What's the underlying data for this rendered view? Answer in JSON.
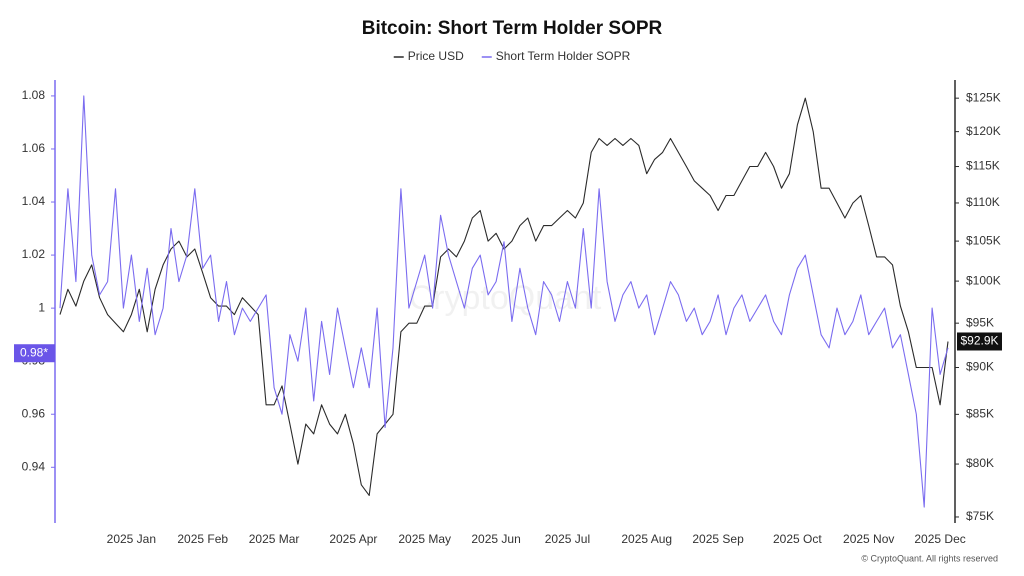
{
  "chart_data": {
    "type": "line",
    "title": "Bitcoin: Short Term Holder SOPR",
    "watermark": "CryptoQuant",
    "footer": "© CryptoQuant. All rights reserved",
    "categories": [
      null,
      null,
      null,
      null,
      null,
      null,
      null,
      null,
      null,
      "2025 Jan",
      null,
      null,
      null,
      null,
      null,
      null,
      null,
      null,
      "2025 Feb",
      null,
      null,
      null,
      null,
      null,
      null,
      null,
      null,
      "2025 Mar",
      null,
      null,
      null,
      null,
      null,
      null,
      null,
      null,
      null,
      "2025 Apr",
      null,
      null,
      null,
      null,
      null,
      null,
      null,
      null,
      "2025 May",
      null,
      null,
      null,
      null,
      null,
      null,
      null,
      null,
      "2025 Jun",
      null,
      null,
      null,
      null,
      null,
      null,
      null,
      null,
      "2025 Jul",
      null,
      null,
      null,
      null,
      null,
      null,
      null,
      null,
      null,
      "2025 Aug",
      null,
      null,
      null,
      null,
      null,
      null,
      null,
      null,
      "2025 Sep",
      null,
      null,
      null,
      null,
      null,
      null,
      null,
      null,
      null,
      "2025 Oct",
      null,
      null,
      null,
      null,
      null,
      null,
      null,
      null,
      "2025 Nov",
      null,
      null,
      null,
      null,
      null,
      null,
      null,
      null,
      "2025 Dec",
      null
    ],
    "series": [
      {
        "name": "Price USD",
        "color": "#2b2b2b",
        "axis": "y2",
        "values": [
          96000,
          99000,
          97000,
          100000,
          102000,
          98000,
          96000,
          95000,
          94000,
          96000,
          99000,
          94000,
          99000,
          102000,
          104000,
          105000,
          103000,
          104000,
          101000,
          98000,
          97000,
          97000,
          96000,
          98000,
          97000,
          96000,
          86000,
          86000,
          88000,
          84000,
          80000,
          84000,
          83000,
          86000,
          84000,
          83000,
          85000,
          82000,
          78000,
          77000,
          83000,
          84000,
          85000,
          94000,
          95000,
          95000,
          97000,
          97000,
          103000,
          104000,
          103000,
          105000,
          108000,
          109000,
          105000,
          106000,
          104000,
          105000,
          107000,
          108000,
          105000,
          107000,
          107000,
          108000,
          109000,
          108000,
          110000,
          117000,
          119000,
          118000,
          119000,
          118000,
          119000,
          118000,
          114000,
          116000,
          117000,
          119000,
          117000,
          115000,
          113000,
          112000,
          111000,
          109000,
          111000,
          111000,
          113000,
          115000,
          115000,
          117000,
          115000,
          112000,
          114000,
          121000,
          125000,
          120000,
          112000,
          112000,
          110000,
          108000,
          110000,
          111000,
          107000,
          103000,
          103000,
          102000,
          97000,
          94000,
          90000,
          90000,
          90000,
          86000,
          92900
        ]
      },
      {
        "name": "Short Term Holder SOPR",
        "color": "#7b6cf0",
        "axis": "y",
        "values": [
          1.0,
          1.045,
          1.01,
          1.08,
          1.02,
          1.005,
          1.01,
          1.045,
          1.0,
          1.02,
          0.995,
          1.015,
          0.99,
          1.0,
          1.03,
          1.01,
          1.02,
          1.045,
          1.015,
          1.02,
          0.995,
          1.01,
          0.99,
          1.0,
          0.995,
          1.0,
          1.005,
          0.97,
          0.96,
          0.99,
          0.98,
          1.0,
          0.965,
          0.995,
          0.975,
          1.0,
          0.985,
          0.97,
          0.985,
          0.97,
          1.0,
          0.955,
          0.985,
          1.045,
          1.0,
          1.01,
          1.02,
          1.0,
          1.035,
          1.02,
          1.01,
          1.0,
          1.015,
          1.02,
          1.005,
          1.01,
          1.025,
          0.995,
          1.015,
          1.0,
          0.99,
          1.01,
          1.005,
          0.995,
          1.01,
          1.0,
          1.03,
          1.0,
          1.045,
          1.01,
          0.995,
          1.005,
          1.01,
          1.0,
          1.005,
          0.99,
          1.0,
          1.01,
          1.005,
          0.995,
          1.0,
          0.99,
          0.995,
          1.005,
          0.99,
          1.0,
          1.005,
          0.995,
          1.0,
          1.005,
          0.995,
          0.99,
          1.005,
          1.015,
          1.02,
          1.005,
          0.99,
          0.985,
          1.0,
          0.99,
          0.995,
          1.005,
          0.99,
          0.995,
          1.0,
          0.985,
          0.99,
          0.975,
          0.96,
          0.925,
          1.0,
          0.975,
          0.985
        ]
      }
    ],
    "ylim": [
      0.919,
      1.086
    ],
    "yticks": [
      0.94,
      0.96,
      0.98,
      1,
      1.02,
      1.04,
      1.06,
      1.08
    ],
    "y2lim": [
      74450,
      127800
    ],
    "y2scale": "log",
    "y2ticks": [
      {
        "value": 75000,
        "label": "$75K"
      },
      {
        "value": 80000,
        "label": "$80K"
      },
      {
        "value": 85000,
        "label": "$85K"
      },
      {
        "value": 90000,
        "label": "$90K"
      },
      {
        "value": 95000,
        "label": "$95K"
      },
      {
        "value": 100000,
        "label": "$100K"
      },
      {
        "value": 105000,
        "label": "$105K"
      },
      {
        "value": 110000,
        "label": "$110K"
      },
      {
        "value": 115000,
        "label": "$115K"
      },
      {
        "value": 120000,
        "label": "$120K"
      },
      {
        "value": 125000,
        "label": "$125K"
      }
    ],
    "annotations": [
      {
        "value": 0.983,
        "label": "0.98*",
        "axis": "y",
        "color": "#6a55e8"
      },
      {
        "value": 92900,
        "label": "$92.9K",
        "axis": "y2",
        "color": "#111111"
      }
    ],
    "legend": "top",
    "grid": false
  }
}
